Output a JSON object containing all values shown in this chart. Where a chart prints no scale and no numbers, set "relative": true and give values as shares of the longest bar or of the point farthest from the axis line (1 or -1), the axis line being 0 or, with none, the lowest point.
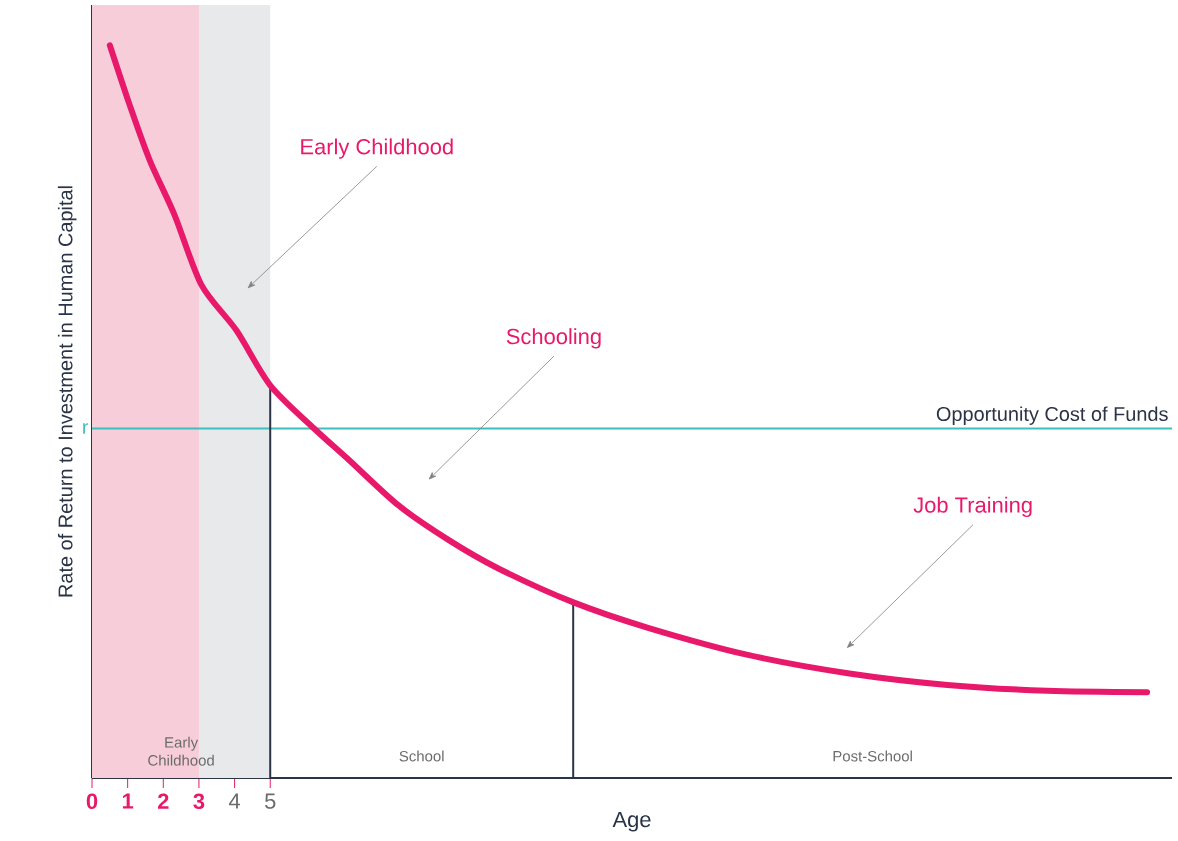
{
  "chart_data": {
    "type": "line",
    "relative": true,
    "xlabel": "Age",
    "ylabel": "Rate of Return to Investment in Human Capital",
    "xlim": [
      0,
      30.3
    ],
    "xticks": [
      0,
      1,
      2,
      3,
      4,
      5
    ],
    "series": [
      {
        "color": "#e8196b",
        "x": [
          0.5,
          1.06,
          1.62,
          2.32,
          3.07,
          4.05,
          5.0,
          6.23,
          7.21,
          8.6,
          10.0,
          11.4,
          13.49,
          15.6,
          18.4,
          21.2,
          24.0,
          26.8,
          29.6
        ],
        "values": [
          1.0,
          0.918,
          0.843,
          0.768,
          0.673,
          0.611,
          0.536,
          0.477,
          0.434,
          0.372,
          0.325,
          0.286,
          0.24,
          0.205,
          0.168,
          0.143,
          0.127,
          0.119,
          0.117
        ]
      }
    ],
    "bands": [
      {
        "axis": "x",
        "from": 0,
        "to": 5,
        "label": "Early Childhood",
        "color": "#e8e9ea"
      },
      {
        "axis": "x",
        "from": 0,
        "to": 3,
        "color": "#f7cdd9",
        "label": null
      }
    ],
    "ref_lines": [
      {
        "axis": "y",
        "value": 0.477,
        "label": "Opportunity Cost of Funds",
        "color": "#3dbfbf"
      },
      {
        "axis": "x",
        "value": 5,
        "color": "#2b3446"
      },
      {
        "axis": "x",
        "value": 13.5,
        "color": "#2b3446"
      }
    ],
    "annotations": [
      {
        "text": "r",
        "x": 0,
        "y": 0.477
      },
      "Early Childhood",
      "Schooling",
      "Job Training",
      "School",
      "Post-School"
    ]
  }
}
